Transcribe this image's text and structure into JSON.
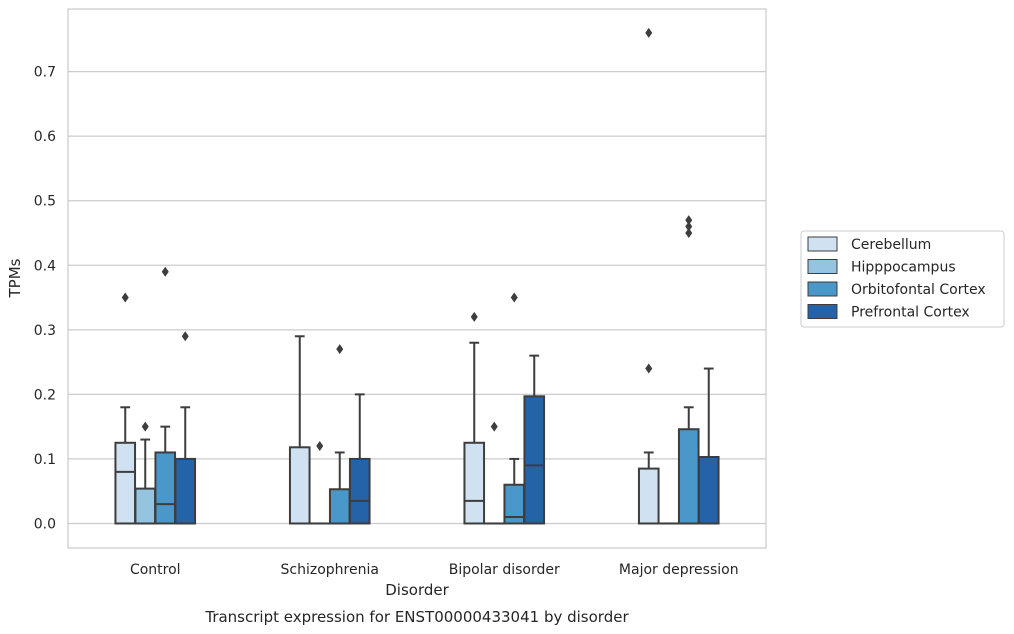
{
  "chart_data": {
    "type": "box",
    "xlabel": "Disorder",
    "ylabel": "TPMs",
    "caption": "Transcript expression for ENST00000433041 by disorder",
    "ylim": [
      -0.038,
      0.797
    ],
    "yticks": [
      "0.0",
      "0.1",
      "0.2",
      "0.3",
      "0.4",
      "0.5",
      "0.6",
      "0.7"
    ],
    "grid": "horizontal",
    "legend_position": "right",
    "categories": [
      "Control",
      "Schizophrenia",
      "Bipolar disorder",
      "Major depression"
    ],
    "series": [
      {
        "name": "Cerebellum",
        "color": "#d0e1f2",
        "boxes": [
          {
            "whislo": 0.0,
            "q1": 0.0,
            "med": 0.08,
            "q3": 0.125,
            "whishi": 0.18,
            "fliers": [
              0.35
            ]
          },
          {
            "whislo": 0.0,
            "q1": 0.0,
            "med": 0.0,
            "q3": 0.118,
            "whishi": 0.29,
            "fliers": []
          },
          {
            "whislo": 0.0,
            "q1": 0.0,
            "med": 0.035,
            "q3": 0.125,
            "whishi": 0.28,
            "fliers": [
              0.32
            ]
          },
          {
            "whislo": 0.0,
            "q1": 0.0,
            "med": 0.0,
            "q3": 0.085,
            "whishi": 0.11,
            "fliers": [
              0.24,
              0.76
            ]
          }
        ]
      },
      {
        "name": "Hipppocampus",
        "color": "#94c4df",
        "boxes": [
          {
            "whislo": 0.0,
            "q1": 0.0,
            "med": 0.0,
            "q3": 0.054,
            "whishi": 0.13,
            "fliers": [
              0.15
            ]
          },
          {
            "whislo": 0.0,
            "q1": 0.0,
            "med": 0.0,
            "q3": 0.0,
            "whishi": 0.0,
            "fliers": [
              0.12
            ]
          },
          {
            "whislo": 0.0,
            "q1": 0.0,
            "med": 0.0,
            "q3": 0.0,
            "whishi": 0.0,
            "fliers": [
              0.15
            ]
          },
          {
            "whislo": 0.0,
            "q1": 0.0,
            "med": 0.0,
            "q3": 0.0,
            "whishi": 0.0,
            "fliers": []
          }
        ]
      },
      {
        "name": "Orbitofontal Cortex",
        "color": "#4a98c9",
        "boxes": [
          {
            "whislo": 0.0,
            "q1": 0.0,
            "med": 0.03,
            "q3": 0.11,
            "whishi": 0.15,
            "fliers": [
              0.39
            ]
          },
          {
            "whislo": 0.0,
            "q1": 0.0,
            "med": 0.0,
            "q3": 0.053,
            "whishi": 0.11,
            "fliers": [
              0.27
            ]
          },
          {
            "whislo": 0.0,
            "q1": 0.0,
            "med": 0.01,
            "q3": 0.06,
            "whishi": 0.1,
            "fliers": [
              0.35
            ]
          },
          {
            "whislo": 0.0,
            "q1": 0.0,
            "med": 0.0,
            "q3": 0.146,
            "whishi": 0.18,
            "fliers": [
              0.45,
              0.46,
              0.47
            ]
          }
        ]
      },
      {
        "name": "Prefrontal Cortex",
        "color": "#2563a8",
        "boxes": [
          {
            "whislo": 0.0,
            "q1": 0.0,
            "med": 0.0,
            "q3": 0.1,
            "whishi": 0.18,
            "fliers": [
              0.29
            ]
          },
          {
            "whislo": 0.0,
            "q1": 0.0,
            "med": 0.035,
            "q3": 0.1,
            "whishi": 0.2,
            "fliers": []
          },
          {
            "whislo": 0.0,
            "q1": 0.0,
            "med": 0.09,
            "q3": 0.197,
            "whishi": 0.26,
            "fliers": []
          },
          {
            "whislo": 0.0,
            "q1": 0.0,
            "med": 0.0,
            "q3": 0.103,
            "whishi": 0.24,
            "fliers": []
          }
        ]
      }
    ]
  }
}
